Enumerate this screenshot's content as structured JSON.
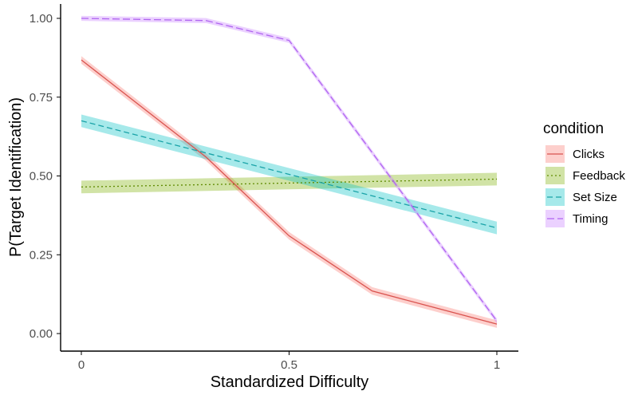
{
  "chart_data": {
    "type": "line",
    "title": "",
    "xlabel": "Standardized Difficulty",
    "ylabel": "P(Target Identification)",
    "xlim": [
      0,
      1
    ],
    "ylim": [
      0,
      1
    ],
    "grid": false,
    "x_ticks": [
      {
        "value": 0,
        "label": "0"
      },
      {
        "value": 0.5,
        "label": "0.5"
      },
      {
        "value": 1,
        "label": "1"
      }
    ],
    "y_ticks": [
      {
        "value": 0,
        "label": "0.00"
      },
      {
        "value": 0.25,
        "label": "0.25"
      },
      {
        "value": 0.5,
        "label": "0.50"
      },
      {
        "value": 0.75,
        "label": "0.75"
      },
      {
        "value": 1,
        "label": "1.00"
      }
    ],
    "legend": {
      "title": "condition",
      "placement": "right"
    },
    "series": [
      {
        "name": "Clicks",
        "color": "#F8766D",
        "line_color": "#d9534f",
        "dash": "solid",
        "x": [
          0,
          0.3,
          0.5,
          0.7,
          1
        ],
        "y": [
          0.868,
          0.56,
          0.31,
          0.135,
          0.03
        ],
        "band": 0.012
      },
      {
        "name": "Feedback",
        "color": "#7CAE00",
        "line_color": "#5f8a00",
        "dash": "dotted",
        "x": [
          0,
          1
        ],
        "y": [
          0.465,
          0.49
        ],
        "band": 0.02
      },
      {
        "name": "Set Size",
        "color": "#00BFC4",
        "line_color": "#1aa3a8",
        "dash": "dashed",
        "x": [
          0,
          1
        ],
        "y": [
          0.675,
          0.335
        ],
        "band": 0.02
      },
      {
        "name": "Timing",
        "color": "#C77CFF",
        "line_color": "#b065f0",
        "dash": "longdash",
        "x": [
          0,
          0.3,
          0.5,
          1
        ],
        "y": [
          1.0,
          0.993,
          0.93,
          0.04
        ],
        "band": 0.008
      }
    ]
  }
}
